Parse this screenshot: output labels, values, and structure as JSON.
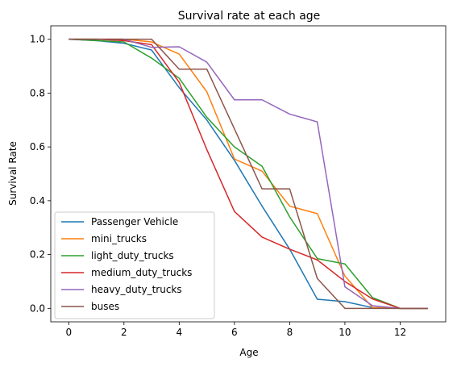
{
  "chart_data": {
    "type": "line",
    "title": "Survival rate at each age",
    "xlabel": "Age",
    "ylabel": "Survival Rate",
    "xlim": [
      -0.65,
      13.65
    ],
    "ylim": [
      -0.05,
      1.05
    ],
    "xticks": [
      0,
      2,
      4,
      6,
      8,
      10,
      12
    ],
    "yticks": [
      0.0,
      0.2,
      0.4,
      0.6,
      0.8,
      1.0
    ],
    "xtick_labels": [
      "0",
      "2",
      "4",
      "6",
      "8",
      "10",
      "12"
    ],
    "ytick_labels": [
      "0.0",
      "0.2",
      "0.4",
      "0.6",
      "0.8",
      "1.0"
    ],
    "grid": false,
    "legend": "lower-left",
    "x": [
      0,
      1,
      2,
      3,
      4,
      5,
      6,
      7,
      8,
      9,
      10,
      11,
      12,
      13
    ],
    "series": [
      {
        "name": "Passenger Vehicle",
        "color": "#1f77b4",
        "values": [
          1.0,
          0.995,
          0.985,
          0.96,
          0.82,
          0.7,
          0.55,
          0.38,
          0.22,
          0.034,
          0.025,
          0.003,
          0.0,
          0.0
        ]
      },
      {
        "name": "mini_trucks",
        "color": "#ff7f0e",
        "values": [
          1.0,
          1.0,
          1.0,
          0.99,
          0.945,
          0.805,
          0.555,
          0.51,
          0.38,
          0.352,
          0.12,
          0.003,
          0.0,
          0.0
        ]
      },
      {
        "name": "light_duty_trucks",
        "color": "#2ca02c",
        "values": [
          1.0,
          0.995,
          0.99,
          0.93,
          0.855,
          0.71,
          0.6,
          0.528,
          0.34,
          0.185,
          0.165,
          0.04,
          0.0,
          0.0
        ]
      },
      {
        "name": "medium_duty_trucks",
        "color": "#d62728",
        "values": [
          1.0,
          1.0,
          0.995,
          0.98,
          0.84,
          0.59,
          0.36,
          0.265,
          0.22,
          0.18,
          0.1,
          0.035,
          0.0,
          0.0
        ]
      },
      {
        "name": "heavy_duty_trucks",
        "color": "#9467bd",
        "values": [
          1.0,
          1.0,
          1.0,
          0.97,
          0.972,
          0.915,
          0.775,
          0.775,
          0.722,
          0.693,
          0.08,
          0.01,
          0.0,
          0.0
        ]
      },
      {
        "name": "buses",
        "color": "#8c564b",
        "values": [
          1.0,
          1.0,
          1.0,
          1.0,
          0.889,
          0.889,
          0.667,
          0.444,
          0.444,
          0.111,
          0.0,
          0.0,
          0.0,
          0.0
        ]
      }
    ]
  }
}
